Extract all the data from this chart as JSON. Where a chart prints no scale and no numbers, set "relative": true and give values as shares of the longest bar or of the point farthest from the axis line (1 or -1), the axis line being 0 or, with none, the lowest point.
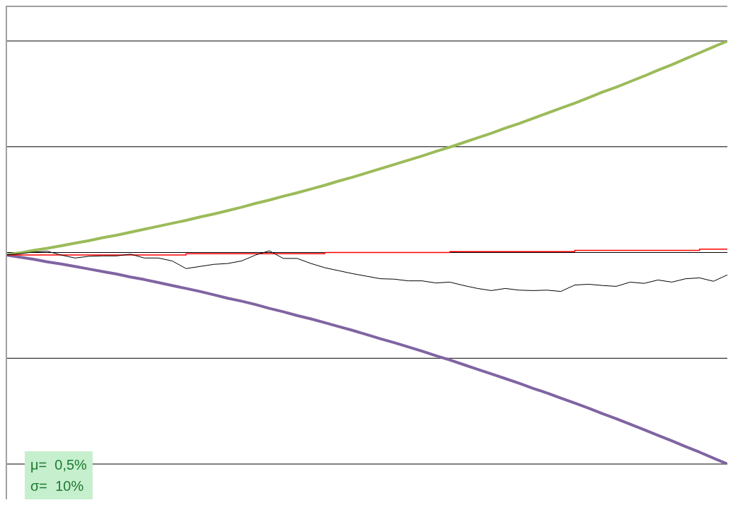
{
  "chart_data": {
    "type": "line",
    "relative": true,
    "grid": "y",
    "legend": false,
    "marker": "none",
    "annotations": [
      "μ=  0,5%",
      "σ=  10%"
    ],
    "categories": [
      null,
      null,
      null,
      null,
      null,
      null,
      null,
      null,
      null,
      null,
      null,
      null,
      null,
      null,
      null,
      null,
      null,
      null,
      null,
      null,
      null,
      null,
      null,
      null,
      null,
      null,
      null,
      null,
      null,
      null,
      null,
      null,
      null,
      null,
      null,
      null,
      null,
      null,
      null,
      null,
      null,
      null,
      null,
      null,
      null,
      null,
      null,
      null,
      null,
      null,
      null,
      null,
      null
    ],
    "series": [
      {
        "color": "#9bbb59",
        "values": [
          0.494,
          0.499,
          0.505,
          0.51,
          0.516,
          0.522,
          0.528,
          0.535,
          0.541,
          0.548,
          0.555,
          0.562,
          0.569,
          0.576,
          0.584,
          0.591,
          0.599,
          0.607,
          0.616,
          0.624,
          0.633,
          0.641,
          0.65,
          0.659,
          0.669,
          0.678,
          0.688,
          0.698,
          0.708,
          0.718,
          0.728,
          0.739,
          0.749,
          0.76,
          0.771,
          0.782,
          0.794,
          0.805,
          0.817,
          0.829,
          0.841,
          0.853,
          0.866,
          0.879,
          0.891,
          0.904,
          0.917,
          0.931,
          0.944,
          0.958,
          0.972,
          0.986,
          1
        ]
      },
      {
        "color": "#8064a2",
        "values": [
          0.494,
          0.489,
          0.484,
          0.478,
          0.473,
          0.467,
          0.461,
          0.455,
          0.449,
          0.442,
          0.436,
          0.429,
          0.422,
          0.415,
          0.408,
          0.4,
          0.392,
          0.385,
          0.377,
          0.368,
          0.36,
          0.351,
          0.343,
          0.334,
          0.325,
          0.316,
          0.306,
          0.296,
          0.287,
          0.277,
          0.267,
          0.256,
          0.246,
          0.235,
          0.224,
          0.213,
          0.202,
          0.191,
          0.179,
          0.168,
          0.156,
          0.144,
          0.132,
          0.119,
          0.107,
          0.094,
          0.081,
          0.068,
          0.055,
          0.041,
          0.028,
          0.014,
          0
        ]
      },
      {
        "type": "step",
        "color": "#ff0000",
        "values": [
          0.494,
          0.494,
          0.494,
          0.494,
          0.494,
          0.494,
          0.494,
          0.494,
          0.494,
          0.494,
          0.494,
          0.494,
          0.494,
          0.497,
          0.497,
          0.497,
          0.497,
          0.497,
          0.497,
          0.497,
          0.497,
          0.497,
          0.497,
          0.5,
          0.5,
          0.5,
          0.5,
          0.5,
          0.5,
          0.5,
          0.5,
          0.5,
          0.502,
          0.502,
          0.502,
          0.502,
          0.502,
          0.502,
          0.502,
          0.502,
          0.502,
          0.505,
          0.505,
          0.505,
          0.505,
          0.505,
          0.505,
          0.505,
          0.505,
          0.505,
          0.508,
          0.508,
          0.508
        ]
      },
      {
        "color": "#000000",
        "values": [
          0.494,
          0.497,
          0.501,
          0.503,
          0.494,
          0.487,
          0.491,
          0.492,
          0.492,
          0.496,
          0.487,
          0.487,
          0.48,
          0.462,
          0.467,
          0.472,
          0.474,
          0.48,
          0.494,
          0.504,
          0.486,
          0.486,
          0.474,
          0.464,
          0.457,
          0.45,
          0.444,
          0.438,
          0.437,
          0.433,
          0.433,
          0.428,
          0.43,
          0.422,
          0.415,
          0.41,
          0.415,
          0.411,
          0.41,
          0.411,
          0.408,
          0.423,
          0.425,
          0.422,
          0.42,
          0.43,
          0.427,
          0.435,
          0.43,
          0.438,
          0.44,
          0.432,
          0.447
        ]
      }
    ]
  }
}
